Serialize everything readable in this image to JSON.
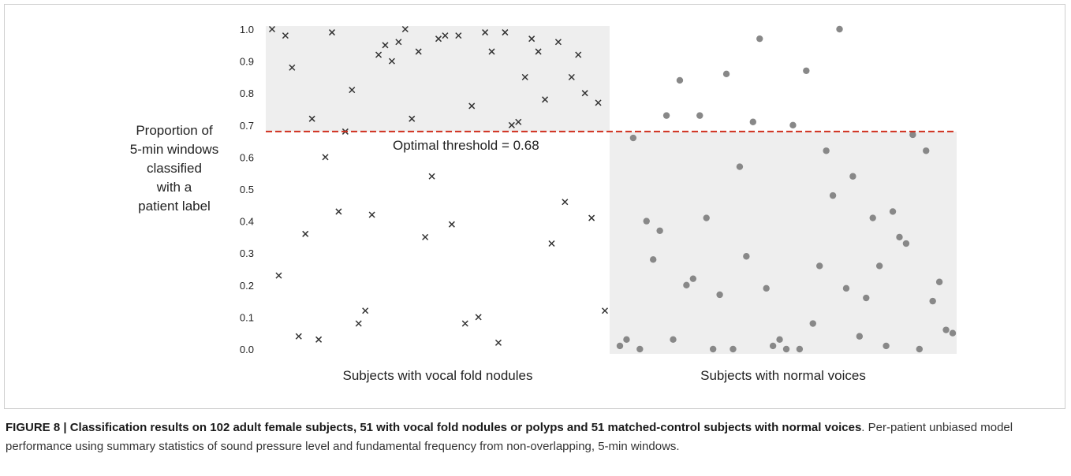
{
  "chart_data": {
    "type": "scatter",
    "xlabel": "",
    "ylabel": "Proportion of\n5-min windows\nclassified\nwith a\npatient label",
    "ylim": [
      0.0,
      1.0
    ],
    "yticks": [
      "0.0",
      "0.1",
      "0.2",
      "0.3",
      "0.4",
      "0.5",
      "0.6",
      "0.7",
      "0.8",
      "0.9",
      "1.0"
    ],
    "grid": false,
    "threshold": {
      "value": 0.68,
      "label": "Optimal threshold = 0.68",
      "color": "#d0301f"
    },
    "shade_color": "#eeeeee",
    "groups": [
      {
        "label": "Subjects with vocal fold nodules",
        "marker": "x",
        "color": "#333333"
      },
      {
        "label": "Subjects with normal voices",
        "marker": "circle",
        "color": "#888888"
      }
    ],
    "series": [
      {
        "group": 0,
        "values": [
          1.0,
          0.23,
          0.98,
          0.88,
          0.04,
          0.36,
          0.72,
          0.03,
          0.6,
          0.99,
          0.43,
          0.68,
          0.81,
          0.08,
          0.12,
          0.42,
          0.92,
          0.95,
          0.9,
          0.96,
          1.0,
          0.72,
          0.93,
          0.35,
          0.54,
          0.97,
          0.98,
          0.39,
          0.98,
          0.08,
          0.76,
          0.1,
          0.99,
          0.93,
          0.02,
          0.99,
          0.7,
          0.71,
          0.85,
          0.97,
          0.93,
          0.78,
          0.33,
          0.96,
          0.46,
          0.85,
          0.92,
          0.8,
          0.41,
          0.77,
          0.12
        ]
      },
      {
        "group": 1,
        "values": [
          0.01,
          0.03,
          0.66,
          0.0,
          0.4,
          0.28,
          0.37,
          0.73,
          0.03,
          0.84,
          0.2,
          0.22,
          0.73,
          0.41,
          0.0,
          0.17,
          0.86,
          0.0,
          0.57,
          0.29,
          0.71,
          0.97,
          0.19,
          0.01,
          0.03,
          0.0,
          0.7,
          0.0,
          0.87,
          0.08,
          0.26,
          0.62,
          0.48,
          1.0,
          0.19,
          0.54,
          0.04,
          0.16,
          0.41,
          0.26,
          0.01,
          0.43,
          0.35,
          0.33,
          0.67,
          0.0,
          0.62,
          0.15,
          0.21,
          0.06,
          0.05
        ]
      }
    ]
  },
  "caption": {
    "title": "FIGURE 8 | Classification results on 102 adult female subjects, 51 with vocal fold nodules or polyps and 51 matched-control subjects with normal voices",
    "body": ". Per-patient unbiased model performance using summary statistics of sound pressure level and fundamental frequency from non-overlapping, 5-min windows."
  }
}
